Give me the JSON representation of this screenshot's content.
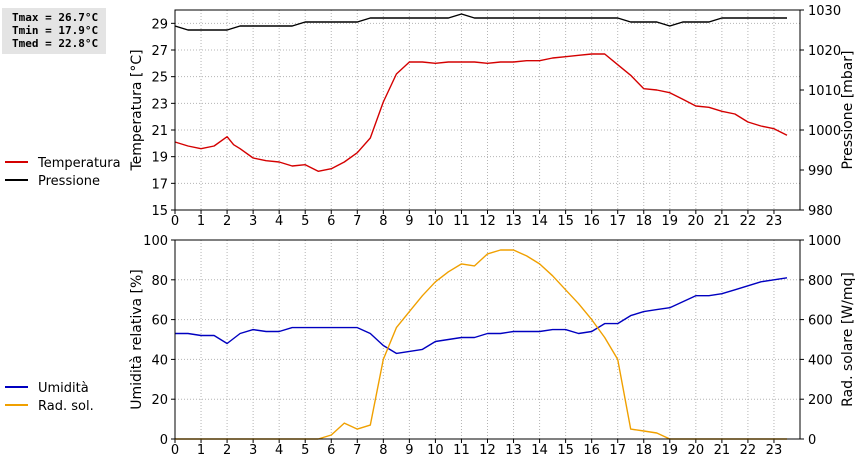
{
  "stats": {
    "tmax": "Tmax = 26.7°C",
    "tmin": "Tmin = 17.9°C",
    "tmed": "Tmed = 22.8°C"
  },
  "colors": {
    "temperature": "#d40000",
    "pressure": "#000000",
    "humidity": "#0000c0",
    "solar": "#f0a000",
    "grid": "#b4b4b4"
  },
  "chart_data": [
    {
      "type": "line",
      "ylabel": "Temperatura [°C]",
      "y2label": "Pressione [mbar]",
      "xlim": [
        0,
        24
      ],
      "ylim": [
        15,
        30
      ],
      "y2lim": [
        980,
        1030
      ],
      "xticks": [
        "0",
        "1",
        "2",
        "3",
        "4",
        "5",
        "6",
        "7",
        "8",
        "9",
        "10",
        "11",
        "12",
        "13",
        "14",
        "15",
        "16",
        "17",
        "18",
        "19",
        "20",
        "21",
        "22",
        "23"
      ],
      "yticks": [
        "15",
        "17",
        "19",
        "21",
        "23",
        "25",
        "27",
        "29"
      ],
      "y2ticks": [
        "980",
        "990",
        "1000",
        "1010",
        "1020",
        "1030"
      ],
      "grid": true,
      "legend_placement": "left",
      "series": [
        {
          "name": "Temperatura",
          "axis": "left",
          "x": [
            0,
            0.5,
            1,
            1.5,
            2,
            2.25,
            2.5,
            3,
            3.5,
            4,
            4.5,
            5,
            5.5,
            6,
            6.5,
            7,
            7.5,
            8,
            8.5,
            9,
            9.5,
            10,
            10.5,
            11,
            11.5,
            12,
            12.5,
            13,
            13.5,
            14,
            14.5,
            15,
            15.5,
            16,
            16.5,
            17,
            17.5,
            18,
            18.5,
            19,
            19.5,
            20,
            20.5,
            21,
            21.5,
            22,
            22.5,
            23,
            23.5
          ],
          "y": [
            20.1,
            19.8,
            19.6,
            19.8,
            20.5,
            19.9,
            19.6,
            18.9,
            18.7,
            18.6,
            18.3,
            18.4,
            17.9,
            18.1,
            18.6,
            19.3,
            20.4,
            23.1,
            25.2,
            26.1,
            26.1,
            26.0,
            26.1,
            26.1,
            26.1,
            26.0,
            26.1,
            26.1,
            26.2,
            26.2,
            26.4,
            26.5,
            26.6,
            26.7,
            26.7,
            25.9,
            25.1,
            24.1,
            24.0,
            23.8,
            23.3,
            22.8,
            22.7,
            22.4,
            22.2,
            21.6,
            21.3,
            21.1,
            20.6
          ]
        },
        {
          "name": "Pressione",
          "axis": "right",
          "x": [
            0,
            0.5,
            1,
            1.5,
            2,
            2.5,
            3,
            3.5,
            4,
            4.5,
            5,
            5.5,
            6,
            6.5,
            7,
            7.5,
            8,
            8.5,
            9,
            9.5,
            10,
            10.5,
            11,
            11.5,
            12,
            12.5,
            13,
            13.5,
            14,
            14.5,
            15,
            15.5,
            16,
            16.5,
            17,
            17.5,
            18,
            18.5,
            19,
            19.5,
            20,
            20.5,
            21,
            21.5,
            22,
            22.5,
            23,
            23.5
          ],
          "y": [
            1026,
            1025,
            1025,
            1025,
            1025,
            1026,
            1026,
            1026,
            1026,
            1026,
            1027,
            1027,
            1027,
            1027,
            1027,
            1028,
            1028,
            1028,
            1028,
            1028,
            1028,
            1028,
            1029,
            1028,
            1028,
            1028,
            1028,
            1028,
            1028,
            1028,
            1028,
            1028,
            1028,
            1028,
            1028,
            1027,
            1027,
            1027,
            1026,
            1027,
            1027,
            1027,
            1028,
            1028,
            1028,
            1028,
            1028,
            1028
          ]
        }
      ]
    },
    {
      "type": "line",
      "ylabel": "Umidità relativa [%]",
      "y2label": "Rad. solare [W/mq]",
      "xlim": [
        0,
        24
      ],
      "ylim": [
        0,
        100
      ],
      "y2lim": [
        0,
        1000
      ],
      "xticks": [
        "0",
        "1",
        "2",
        "3",
        "4",
        "5",
        "6",
        "7",
        "8",
        "9",
        "10",
        "11",
        "12",
        "13",
        "14",
        "15",
        "16",
        "17",
        "18",
        "19",
        "20",
        "21",
        "22",
        "23"
      ],
      "yticks": [
        "0",
        "20",
        "40",
        "60",
        "80",
        "100"
      ],
      "y2ticks": [
        "0",
        "200",
        "400",
        "600",
        "800",
        "1000"
      ],
      "grid": true,
      "legend_placement": "left",
      "series": [
        {
          "name": "Umidità",
          "axis": "left",
          "x": [
            0,
            0.5,
            1,
            1.5,
            2,
            2.5,
            3,
            3.5,
            4,
            4.5,
            5,
            5.5,
            6,
            6.5,
            7,
            7.5,
            8,
            8.5,
            9,
            9.5,
            10,
            10.5,
            11,
            11.5,
            12,
            12.5,
            13,
            13.5,
            14,
            14.5,
            15,
            15.5,
            16,
            16.5,
            17,
            17.5,
            18,
            18.5,
            19,
            19.5,
            20,
            20.5,
            21,
            21.5,
            22,
            22.5,
            23,
            23.5
          ],
          "y": [
            53,
            53,
            52,
            52,
            48,
            53,
            55,
            54,
            54,
            56,
            56,
            56,
            56,
            56,
            56,
            53,
            47,
            43,
            44,
            45,
            49,
            50,
            51,
            51,
            53,
            53,
            54,
            54,
            54,
            55,
            55,
            53,
            54,
            58,
            58,
            62,
            64,
            65,
            66,
            69,
            72,
            72,
            73,
            75,
            77,
            79,
            80,
            81
          ]
        },
        {
          "name": "Rad. sol.",
          "axis": "right",
          "x": [
            0,
            1,
            2,
            3,
            4,
            5,
            5.5,
            6,
            6.5,
            7,
            7.5,
            8,
            8.5,
            9,
            9.5,
            10,
            10.5,
            11,
            11.5,
            12,
            12.5,
            13,
            13.5,
            14,
            14.5,
            15,
            15.5,
            16,
            16.5,
            17,
            17.5,
            18,
            18.5,
            19,
            20,
            21,
            22,
            23,
            23.5
          ],
          "y": [
            0,
            0,
            0,
            0,
            0,
            0,
            0,
            20,
            80,
            50,
            70,
            400,
            560,
            640,
            720,
            790,
            840,
            880,
            870,
            930,
            950,
            950,
            920,
            880,
            820,
            750,
            680,
            600,
            510,
            400,
            50,
            40,
            30,
            0,
            0,
            0,
            0,
            0,
            0
          ]
        }
      ]
    }
  ]
}
